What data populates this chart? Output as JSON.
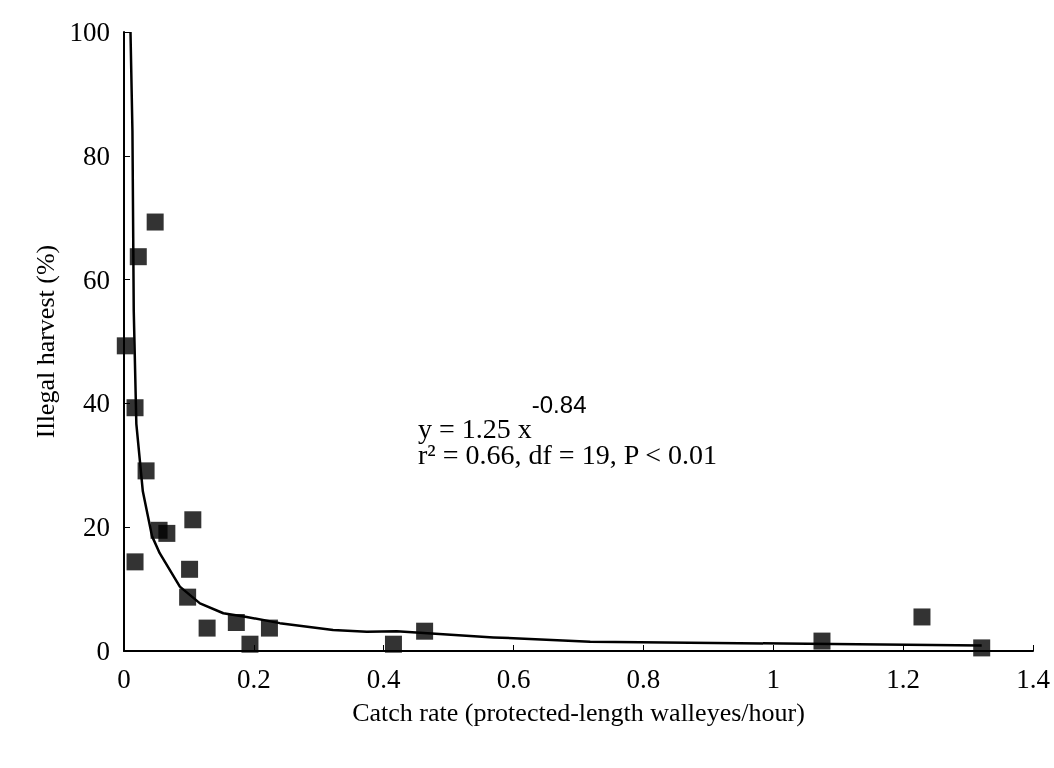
{
  "chart_data": {
    "type": "scatter",
    "xlabel": "Catch rate (protected-length walleyes/hour)",
    "ylabel": "Illegal harvest (%)",
    "xlim": [
      0,
      1.4
    ],
    "xticks": [
      0,
      0.2,
      0.4,
      0.6,
      0.8,
      1,
      1.2,
      1.4
    ],
    "ylim": [
      0,
      100
    ],
    "yticks": [
      0,
      20,
      40,
      60,
      80,
      100
    ],
    "grid": false,
    "marker": "square",
    "annotations": [
      "y = 1.25 x$^{-0.84}$",
      "r² = 0.66, df = 19, P < 0.01"
    ],
    "series": [
      {
        "color": "#000000",
        "x": [
          0.002,
          0.022,
          0.048,
          0.017,
          0.034,
          0.017,
          0.054,
          0.066,
          0.106,
          0.101,
          0.098,
          0.128,
          0.173,
          0.194,
          0.224,
          0.415,
          0.463,
          1.075,
          1.229,
          1.321
        ],
        "values": [
          49.3,
          63.7,
          69.3,
          39.3,
          29.1,
          14.4,
          19.5,
          19.0,
          21.2,
          13.2,
          8.7,
          3.7,
          4.6,
          1.1,
          3.7,
          1.1,
          3.2,
          1.6,
          5.5,
          0.5
        ]
      },
      {
        "type": "line",
        "color": "#000000",
        "marker": "none",
        "line_style": "solid",
        "x": [
          0.01,
          0.013,
          0.015,
          0.019,
          0.029,
          0.043,
          0.055,
          0.086,
          0.117,
          0.153,
          0.189,
          0.24,
          0.322,
          0.374,
          0.42,
          0.569,
          0.718,
          1.015,
          1.321
        ],
        "values": [
          100,
          84,
          55,
          36.7,
          25.8,
          18.6,
          15.8,
          10.4,
          7.7,
          6.1,
          5.5,
          4.5,
          3.4,
          3.1,
          3.2,
          2.2,
          1.5,
          1.2,
          0.9
        ]
      }
    ]
  }
}
